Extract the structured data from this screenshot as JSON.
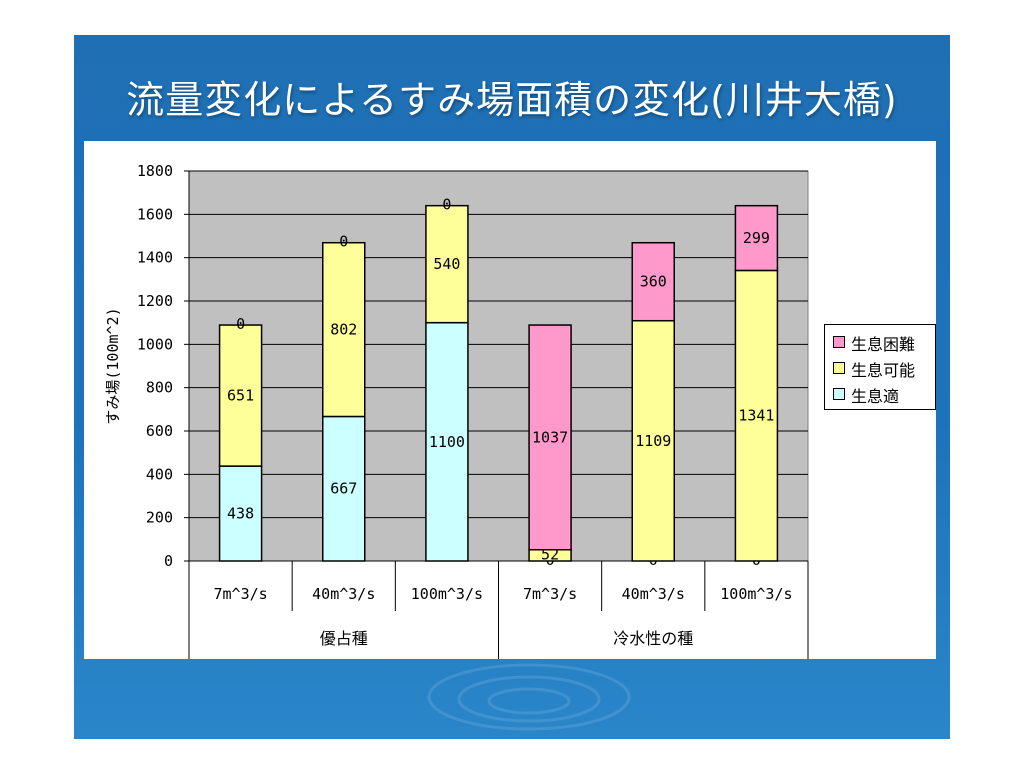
{
  "title": "流量変化によるすみ場面積の変化(川井大橋)",
  "chart_data": {
    "type": "bar",
    "stacked": true,
    "ylabel": "すみ場(100m^2)",
    "ylim": [
      0,
      1800
    ],
    "yticks": [
      0,
      200,
      400,
      600,
      800,
      1000,
      1200,
      1400,
      1600,
      1800
    ],
    "categories": [
      "7m^3/s",
      "40m^3/s",
      "100m^3/s",
      "7m^3/s",
      "40m^3/s",
      "100m^3/s"
    ],
    "groups": [
      {
        "label": "優占種",
        "span": 3
      },
      {
        "label": "冷水性の種",
        "span": 3
      }
    ],
    "series": [
      {
        "name": "生息適",
        "color": "#ccffff",
        "values": [
          438,
          667,
          1100,
          0,
          0,
          0
        ]
      },
      {
        "name": "生息可能",
        "color": "#ffff99",
        "values": [
          651,
          802,
          540,
          52,
          1109,
          1341
        ]
      },
      {
        "name": "生息困難",
        "color": "#ff99cc",
        "values": [
          0,
          0,
          0,
          1037,
          360,
          299
        ]
      }
    ],
    "legend_order": [
      "生息困難",
      "生息可能",
      "生息適"
    ],
    "legend_position": "right",
    "grid": true,
    "plot_background": "#c0c0c0"
  }
}
